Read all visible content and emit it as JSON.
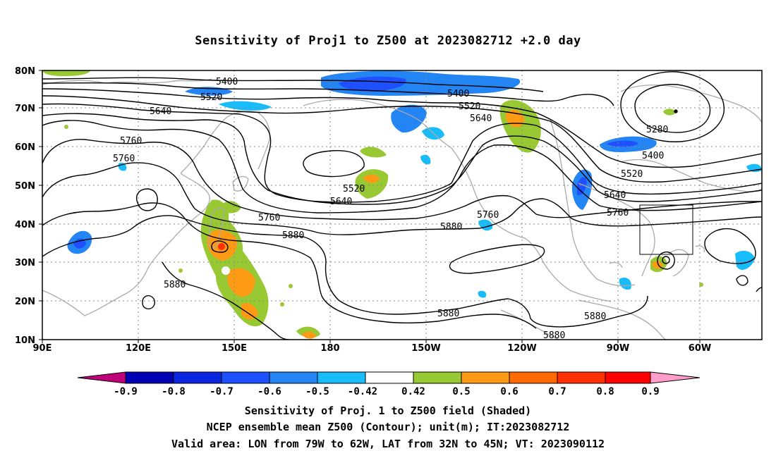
{
  "title": "Sensitivity of Proj1 to Z500 at 2023082712 +2.0 day",
  "map": {
    "lon_labels": [
      "90E",
      "120E",
      "150E",
      "180",
      "150W",
      "120W",
      "90W",
      "60W"
    ],
    "lat_labels": [
      "80N",
      "70N",
      "60N",
      "50N",
      "40N",
      "30N",
      "20N",
      "10N"
    ],
    "gridlines": "dotted",
    "contour_color": "#000000",
    "coastline_color": "#aaaaaa",
    "contour_labels": [
      "5400",
      "5520",
      "5640",
      "5760",
      "5760",
      "5400",
      "5520",
      "5640",
      "5520",
      "5640",
      "5280",
      "5400",
      "5520",
      "5640",
      "5760",
      "5760",
      "5760",
      "5880",
      "5880",
      "5880",
      "5880",
      "5880",
      "5880"
    ],
    "valid_area": {
      "lon": [
        -79,
        -62
      ],
      "lat": [
        32,
        45
      ]
    }
  },
  "colorbar": {
    "labels": [
      "-0.9",
      "-0.8",
      "-0.7",
      "-0.6",
      "-0.5",
      "-0.42",
      "0.42",
      "0.5",
      "0.6",
      "0.7",
      "0.8",
      "0.9"
    ],
    "colors": [
      "#c0007a",
      "#0000b4",
      "#0a28e0",
      "#1e50ff",
      "#2384f4",
      "#18bcfa",
      "#ffffff",
      "#98c832",
      "#ff9a14",
      "#ff6a00",
      "#ff3000",
      "#ff0000",
      "#ff9ec8"
    ]
  },
  "captions": [
    "Sensitivity of Proj. 1 to Z500 field (Shaded)",
    "NCEP ensemble mean Z500 (Contour); unit(m); IT:2023082712",
    "Valid area: LON from 79W to 62W, LAT from 32N to 45N; VT: 2023090112"
  ]
}
